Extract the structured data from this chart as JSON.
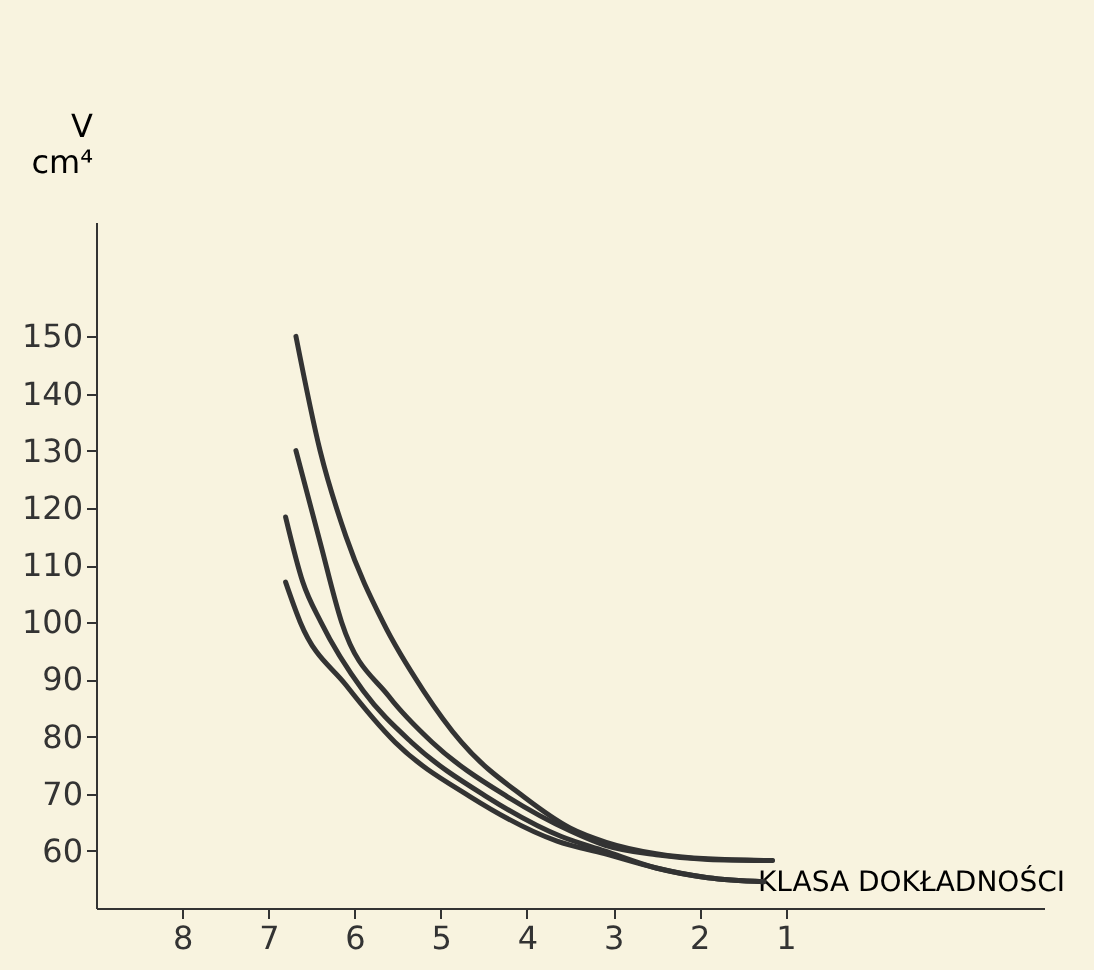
{
  "chart_data": {
    "type": "line",
    "xlabel": "KLASA DOKŁADNOŚCI",
    "ylabel": "V cm⁴",
    "xlim": [
      9,
      -2
    ],
    "xticks": [
      8,
      7,
      6,
      5,
      4,
      3,
      2,
      1
    ],
    "ylim": [
      50,
      170
    ],
    "yticks": [
      60,
      70,
      80,
      90,
      100,
      110,
      120,
      130,
      140,
      150
    ],
    "grid": false,
    "legend": false,
    "marker": "none",
    "line_style": "solid",
    "series": [
      {
        "color": "#333333",
        "x": [
          6.68,
          6.4,
          6.1,
          5.67,
          5.2,
          4.76,
          4.04,
          3.5,
          3.08,
          2.5,
          1.9,
          1.15
        ],
        "values": [
          150,
          130,
          115,
          100,
          88,
          79,
          69.5,
          64,
          61.5,
          59.5,
          58.6,
          58.3
        ]
      },
      {
        "color": "#333333",
        "x": [
          6.68,
          6.4,
          6.15,
          5.6,
          5.1,
          4.23,
          3.5,
          3.1,
          2.5,
          1.9,
          1.15
        ],
        "values": [
          130,
          114,
          100,
          87,
          79,
          69.5,
          63.5,
          61,
          59.3,
          58.5,
          58.3
        ]
      },
      {
        "color": "#333333",
        "x": [
          6.8,
          6.6,
          6.39,
          5.9,
          5.34,
          4.47,
          3.6,
          3.1,
          2.5,
          1.9,
          1.25
        ],
        "values": [
          118.4,
          107,
          100,
          88,
          79,
          69.5,
          62.5,
          60,
          57,
          55.3,
          54.6
        ]
      },
      {
        "color": "#333333",
        "x": [
          6.8,
          6.63,
          6.1,
          5.53,
          4.66,
          3.65,
          3.1,
          2.5,
          1.9,
          1.25
        ],
        "values": [
          107,
          100,
          89,
          79,
          69.5,
          61.7,
          59.5,
          57,
          55.3,
          54.6
        ]
      }
    ]
  }
}
